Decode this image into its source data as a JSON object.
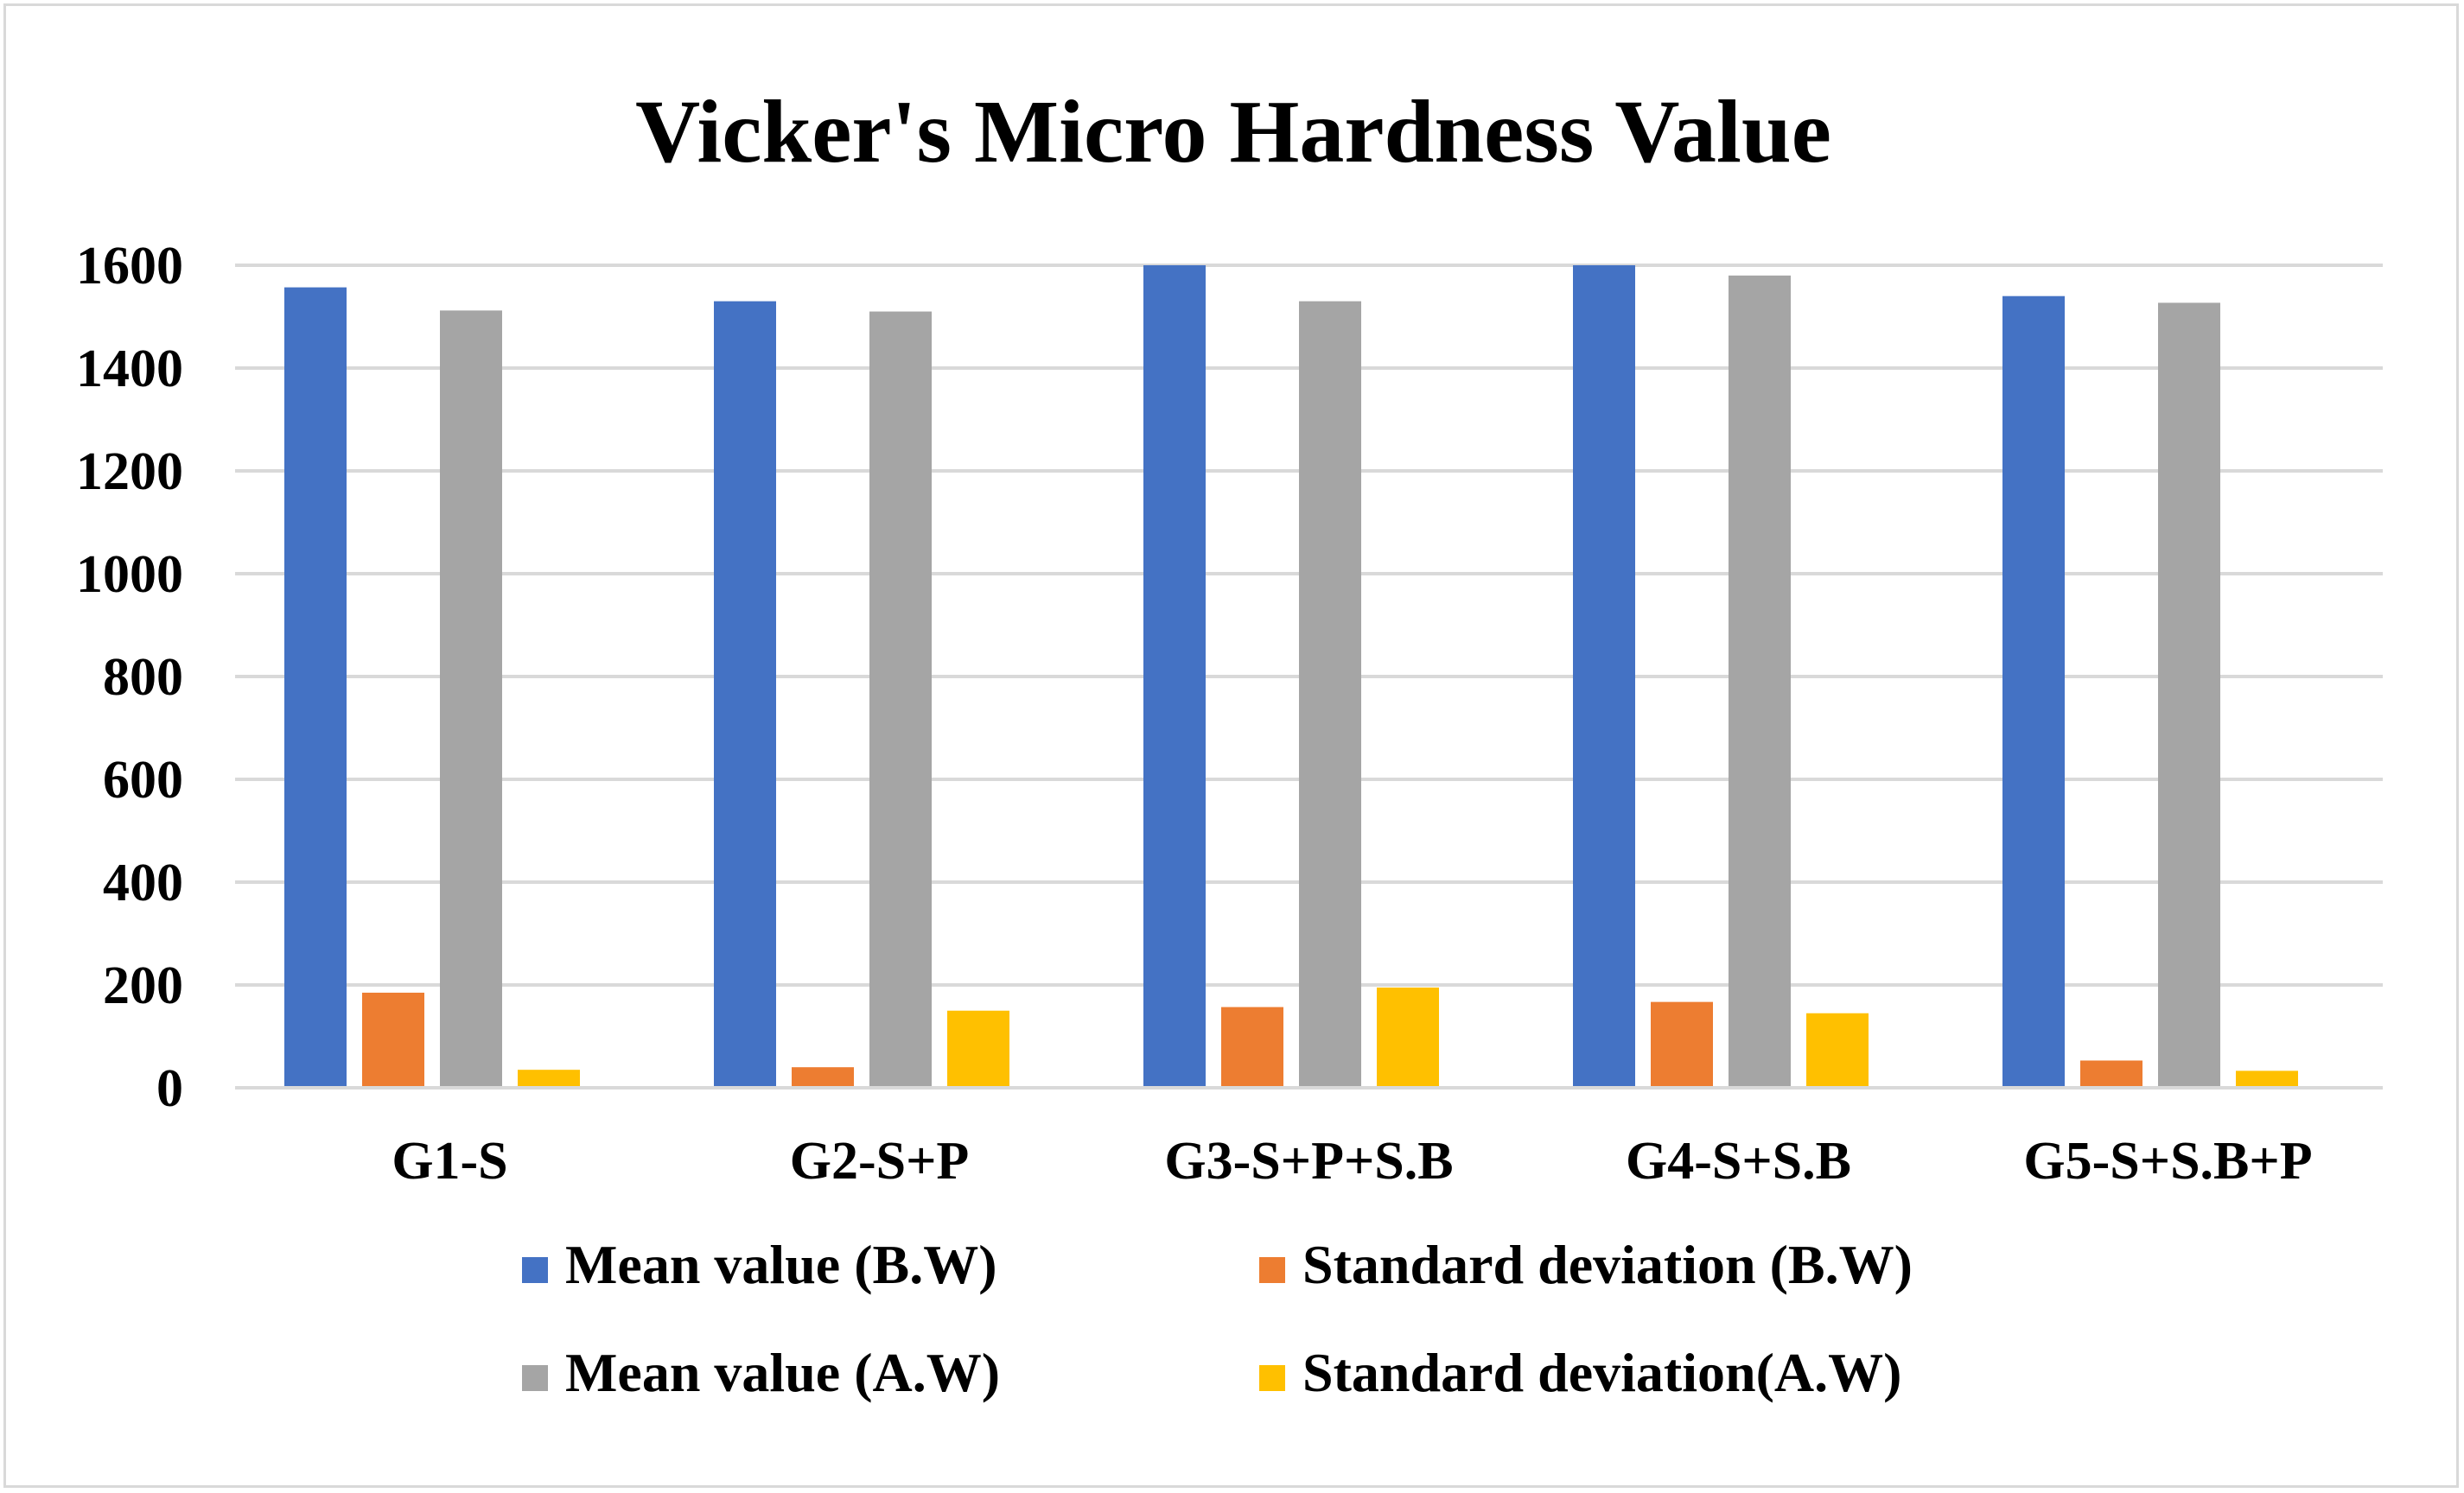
{
  "chart_data": {
    "type": "bar",
    "title": "Vicker's Micro Hardness Value",
    "xlabel": "",
    "ylabel": "",
    "ylim": [
      0,
      1600
    ],
    "yticks": [
      0,
      200,
      400,
      600,
      800,
      1000,
      1200,
      1400,
      1600
    ],
    "grid": true,
    "legend_position": "bottom",
    "categories": [
      "G1-S",
      "G2-S+P",
      "G3-S+P+S.B",
      "G4-S+S.B",
      "G5-S+S.B+P"
    ],
    "series": [
      {
        "name": "Mean value (B.W)",
        "color": "#4472C4",
        "values": [
          1557,
          1530,
          1600,
          1600,
          1540
        ]
      },
      {
        "name": "Standard deviation (B.W)",
        "color": "#ED7D31",
        "values": [
          185,
          40,
          157,
          167,
          53
        ]
      },
      {
        "name": "Mean value (A.W)",
        "color": "#A5A5A5",
        "values": [
          1512,
          1510,
          1530,
          1580,
          1527
        ]
      },
      {
        "name": "Standard deviation(A.W)",
        "color": "#FFC000",
        "values": [
          35,
          150,
          195,
          145,
          33
        ]
      }
    ]
  }
}
